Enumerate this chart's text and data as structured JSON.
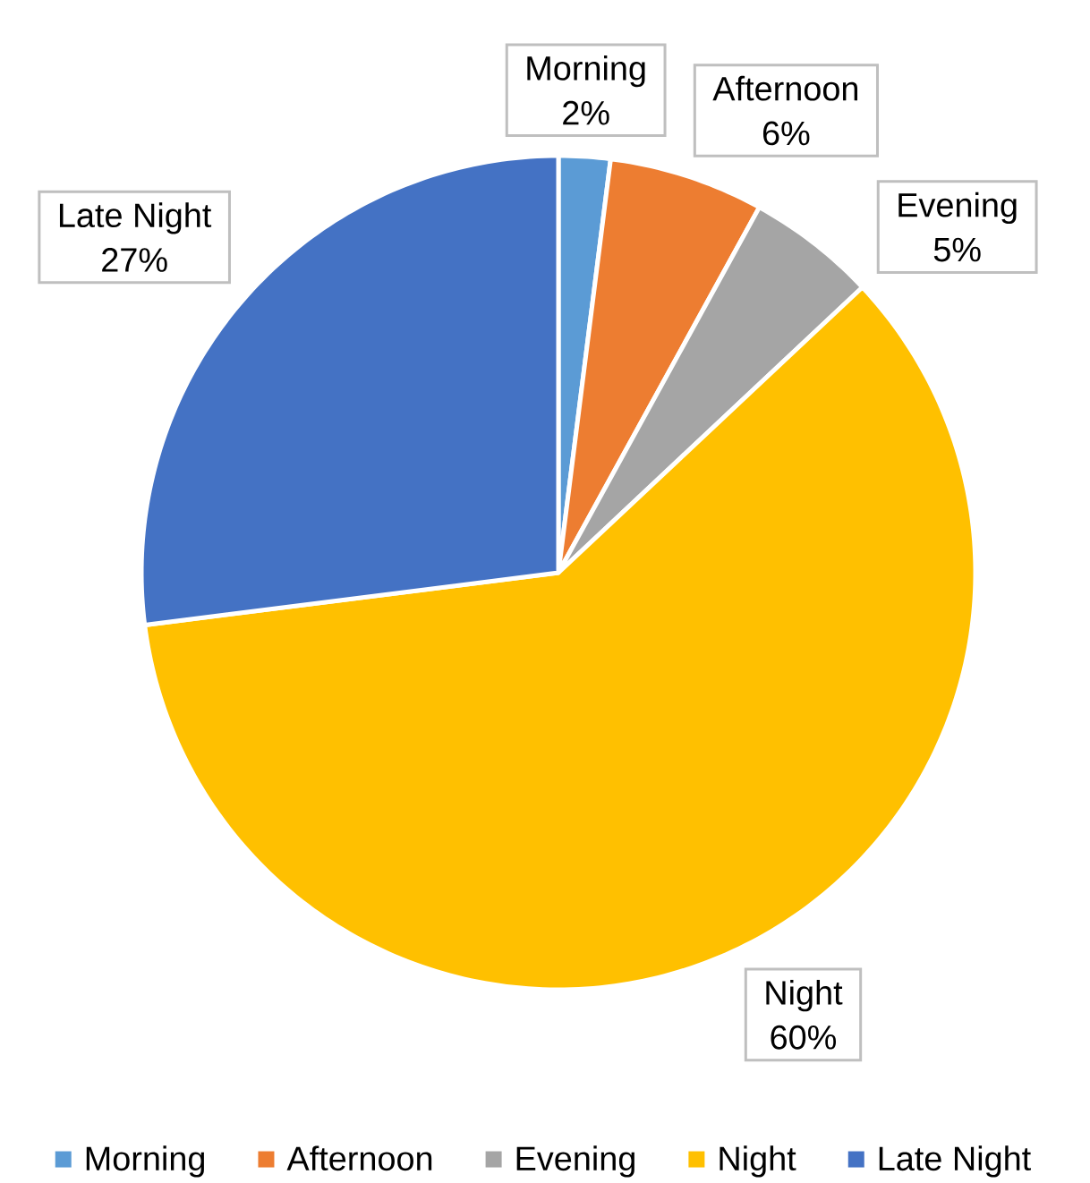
{
  "chart_data": {
    "type": "pie",
    "categories": [
      "Morning",
      "Afternoon",
      "Evening",
      "Night",
      "Late Night"
    ],
    "values": [
      2,
      6,
      5,
      60,
      27
    ],
    "value_labels": [
      "2%",
      "6%",
      "5%",
      "60%",
      "27%"
    ],
    "colors": [
      "#5b9bd5",
      "#ed7d31",
      "#a5a5a5",
      "#ffc000",
      "#4472c4"
    ],
    "legend": "bottom"
  }
}
